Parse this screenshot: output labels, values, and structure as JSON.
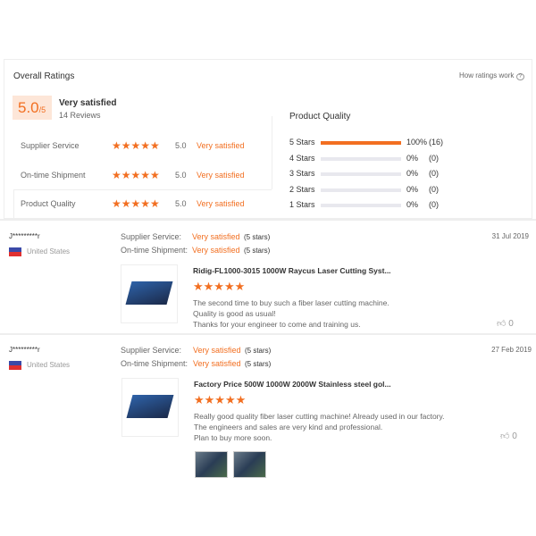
{
  "overall": {
    "title": "Overall Ratings",
    "how_link": "How ratings work",
    "score": "5.0",
    "score_max": "/5",
    "label": "Very satisfied",
    "reviews": "14 Reviews",
    "categories": [
      {
        "name": "Supplier Service",
        "stars": "★★★★★",
        "value": "5.0",
        "label": "Very satisfied"
      },
      {
        "name": "On-time Shipment",
        "stars": "★★★★★",
        "value": "5.0",
        "label": "Very satisfied"
      },
      {
        "name": "Product Quality",
        "stars": "★★★★★",
        "value": "5.0",
        "label": "Very satisfied"
      }
    ]
  },
  "distribution": {
    "title": "Product Quality",
    "rows": [
      {
        "label": "5 Stars",
        "percent": 100,
        "pct": "100%",
        "count": "(16)"
      },
      {
        "label": "4 Stars",
        "percent": 0,
        "pct": "0%",
        "count": "(0)"
      },
      {
        "label": "3 Stars",
        "percent": 0,
        "pct": "0%",
        "count": "(0)"
      },
      {
        "label": "2 Stars",
        "percent": 0,
        "pct": "0%",
        "count": "(0)"
      },
      {
        "label": "1 Stars",
        "percent": 0,
        "pct": "0%",
        "count": "(0)"
      }
    ]
  },
  "accent": "#f26f21",
  "reviews": [
    {
      "user": "J*********r",
      "country": "United States",
      "supplier_label": "Supplier Service:",
      "supplier_value": "Very satisfied",
      "supplier_stars": "(5 stars)",
      "shipment_label": "On-time Shipment:",
      "shipment_value": "Very satisfied",
      "shipment_stars": "(5 stars)",
      "date": "31 Jul 2019",
      "product": "Ridig-FL1000-3015 1000W Raycus Laser Cutting Syst...",
      "stars": "★★★★★",
      "lines": [
        "The second time to buy such a fiber laser cutting machine.",
        "Quality is good as usual!",
        "Thanks for your engineer to come and training us."
      ],
      "likes": "0"
    },
    {
      "user": "J*********r",
      "country": "United States",
      "supplier_label": "Supplier Service:",
      "supplier_value": "Very satisfied",
      "supplier_stars": "(5 stars)",
      "shipment_label": "On-time Shipment:",
      "shipment_value": "Very satisfied",
      "shipment_stars": "(5 stars)",
      "date": "27 Feb 2019",
      "product": "Factory Price 500W 1000W 2000W Stainless steel gol...",
      "stars": "★★★★★",
      "lines": [
        "Really good quality fiber laser cutting machine! Already used in our factory.",
        "The engineers and sales are very kind and professional.",
        "Plan to buy more soon."
      ],
      "likes": "0"
    }
  ]
}
